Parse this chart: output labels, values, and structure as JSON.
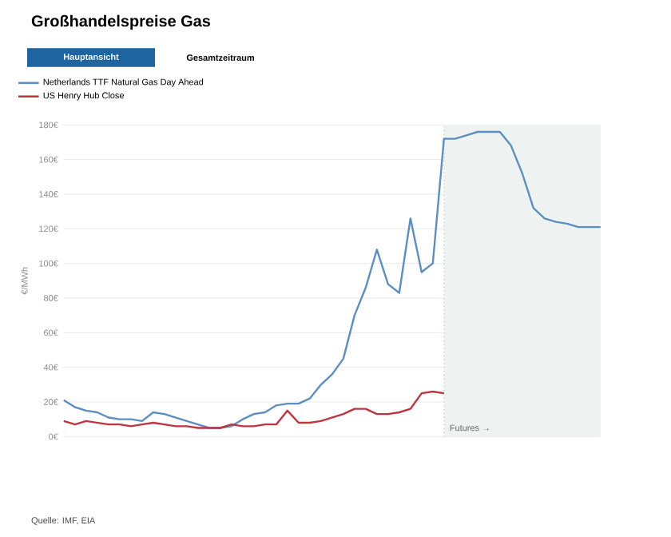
{
  "chart_data": {
    "type": "line",
    "title": "Großhandelspreise Gas",
    "ylabel": "€/MWh",
    "annotations": [
      "Hauptansicht",
      "Gesamtzeitraum",
      "Futures →",
      "Quelle: IMF, EIA"
    ],
    "categories": [
      null,
      null,
      null,
      null,
      null,
      null,
      null,
      null,
      null,
      null,
      null,
      null,
      null,
      null,
      null,
      null,
      null,
      null,
      null,
      null,
      null,
      null,
      null,
      null,
      null,
      null,
      null,
      null,
      null,
      null,
      null,
      null,
      null,
      null,
      null,
      null,
      null,
      null,
      null,
      null,
      null,
      null,
      null,
      null,
      null,
      null,
      null,
      null,
      null
    ],
    "ylim": [
      0,
      180
    ],
    "yticks": [
      {
        "value": 0,
        "label": "0€"
      },
      {
        "value": 20,
        "label": "20€"
      },
      {
        "value": 40,
        "label": "40€"
      },
      {
        "value": 60,
        "label": "60€"
      },
      {
        "value": 80,
        "label": "80€"
      },
      {
        "value": 100,
        "label": "100€"
      },
      {
        "value": 120,
        "label": "120€"
      },
      {
        "value": 140,
        "label": "140€"
      },
      {
        "value": 160,
        "label": "160€"
      },
      {
        "value": 180,
        "label": "180€"
      }
    ],
    "grid": "y",
    "legend": "top left",
    "marker": "none",
    "line_style": "solid",
    "series": [
      {
        "name": "Netherlands TTF Natural Gas Day Ahead",
        "color": "#5b8fc4",
        "values": [
          21,
          17,
          15,
          14,
          11,
          10,
          10,
          9,
          14,
          13,
          11,
          9,
          7,
          5,
          5,
          6,
          10,
          13,
          14,
          18,
          19,
          19,
          22,
          30,
          36,
          45,
          70,
          86,
          108,
          88,
          83,
          126,
          95,
          100,
          172,
          172,
          174,
          176,
          176,
          176,
          168,
          152,
          132,
          126,
          124,
          123,
          121,
          121,
          121
        ]
      },
      {
        "name": "US Henry Hub Close",
        "color": "#c0343f",
        "values": [
          9,
          7,
          9,
          8,
          7,
          7,
          6,
          7,
          8,
          7,
          6,
          6,
          5,
          5,
          5,
          7,
          6,
          6,
          7,
          7,
          15,
          8,
          8,
          9,
          11,
          13,
          16,
          16,
          13,
          13,
          14,
          16,
          25,
          26,
          25,
          null,
          null,
          null,
          null,
          null,
          null,
          null,
          null,
          null,
          null,
          null,
          null,
          null,
          null
        ]
      }
    ]
  }
}
